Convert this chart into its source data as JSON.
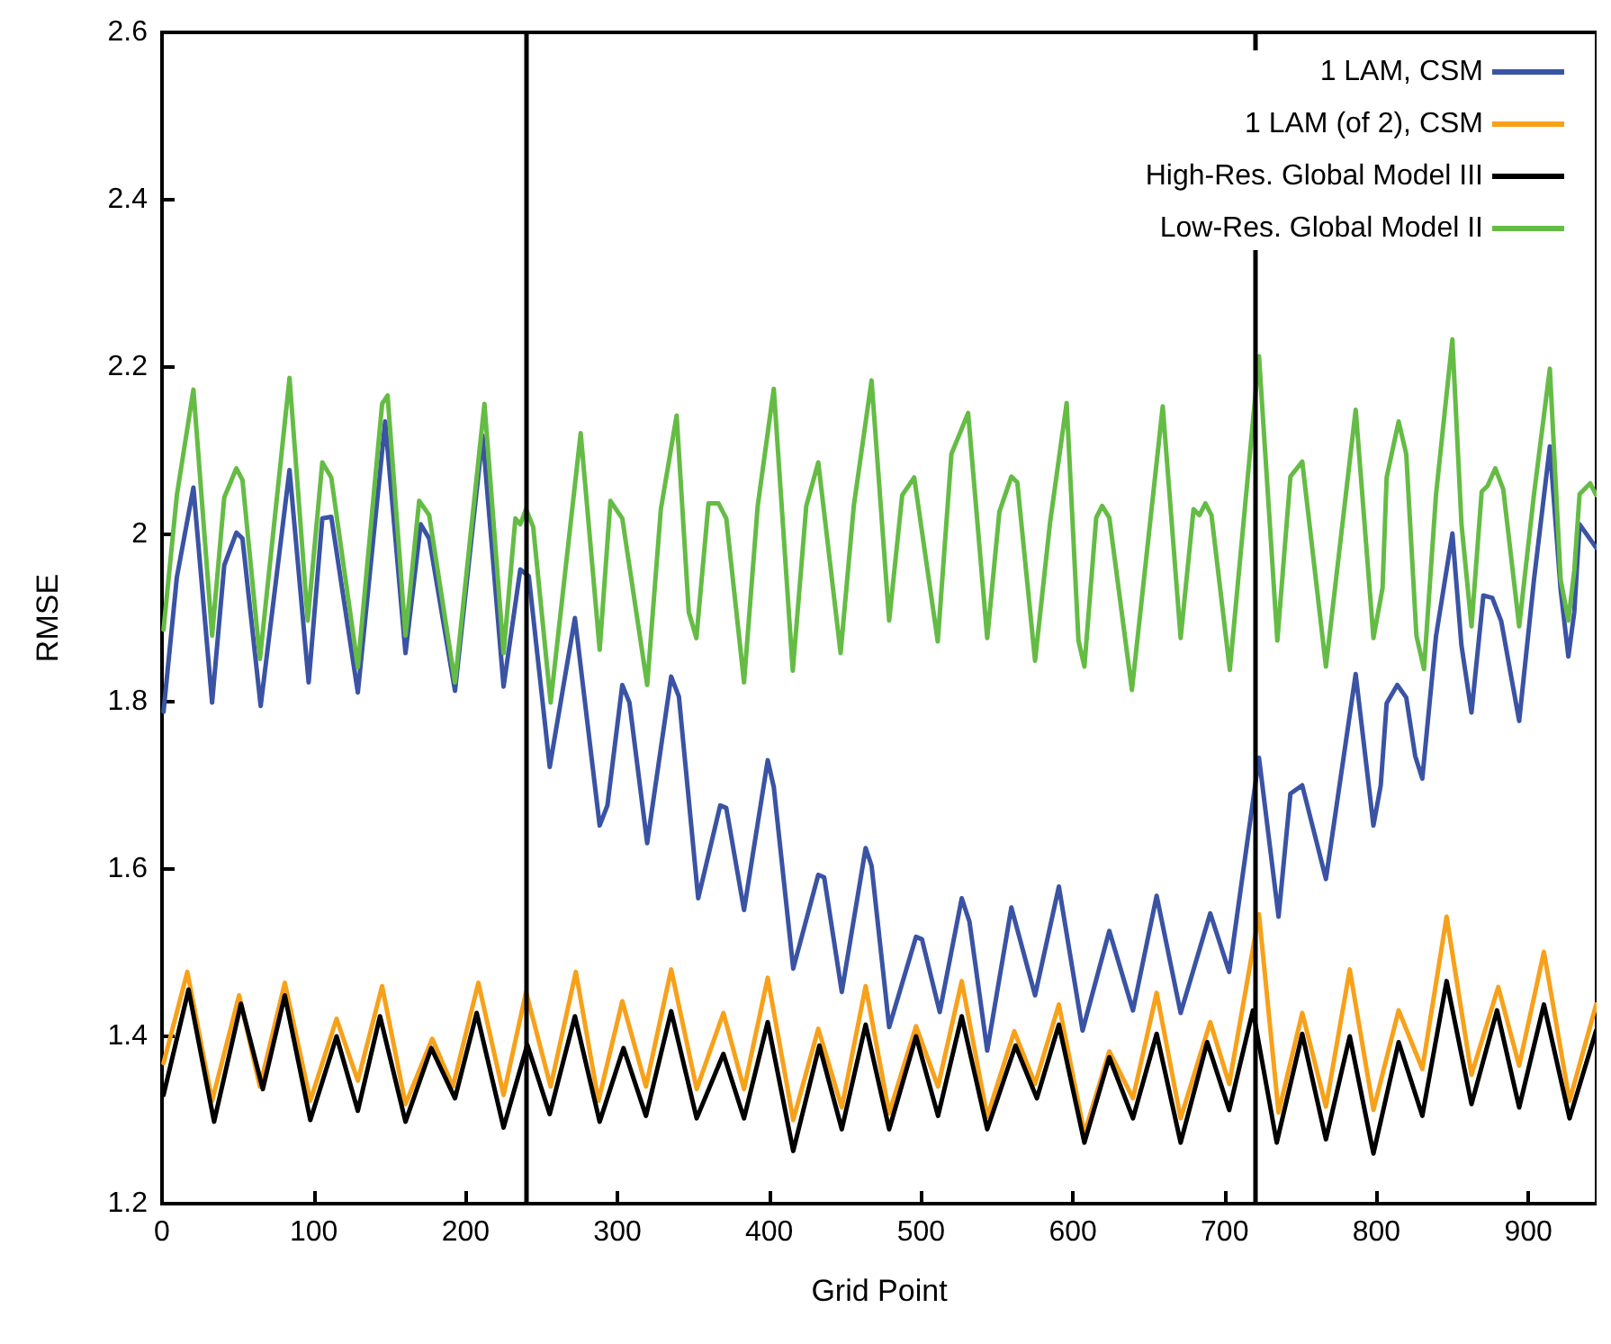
{
  "chart_data": {
    "type": "line",
    "xlabel": "Grid Point",
    "ylabel": "RMSE",
    "xlim": [
      0,
      945
    ],
    "xticks": [
      0,
      100,
      200,
      300,
      400,
      500,
      600,
      700,
      800,
      900
    ],
    "ylim": [
      1.2,
      2.6
    ],
    "yticks": [
      1.2,
      1.4,
      1.6,
      1.8,
      2,
      2.2,
      2.4,
      2.6
    ],
    "grid": false,
    "legend": "top right",
    "marker": "none",
    "line_style": "solid",
    "ref_lines": [
      {
        "axis": "x",
        "value": 240,
        "color": "#000000"
      },
      {
        "axis": "x",
        "value": 720,
        "color": "#000000"
      }
    ],
    "series": [
      {
        "name": "1 LAM, CSM",
        "color": "#3a53a4",
        "x": [
          1,
          9.8,
          20.7,
          33,
          41,
          49,
          53,
          65,
          84,
          96.6,
          105.6,
          111.5,
          129,
          147,
          160.4,
          170.4,
          176,
          193,
          211.2,
          225,
          236,
          241.6,
          255.4,
          272,
          288.3,
          293.4,
          303.2,
          307.9,
          319.6,
          335.4,
          340.5,
          353.2,
          367.7,
          371.7,
          383.4,
          399,
          403,
          415.8,
          432.3,
          436.2,
          447.8,
          463.5,
          467.4,
          479,
          496.7,
          500.6,
          512.3,
          526.8,
          531.9,
          543.6,
          559.5,
          575.1,
          590.8,
          606.4,
          624,
          639.6,
          655.2,
          671,
          690.5,
          703,
          722.6,
          735.5,
          743.3,
          751.1,
          766.7,
          786.3,
          798,
          802.8,
          806.7,
          813.7,
          819.6,
          825.5,
          830.2,
          839.2,
          850,
          856,
          862.6,
          870.4,
          876.3,
          882.2,
          894,
          903.7,
          914.2,
          921.3,
          926.4,
          930.3,
          933.8,
          944.7
        ],
        "values": [
          1.788,
          1.949,
          2.056,
          1.799,
          1.963,
          2.002,
          1.995,
          1.795,
          2.077,
          1.823,
          2.019,
          2.021,
          1.811,
          2.135,
          1.858,
          2.012,
          1.995,
          1.813,
          2.118,
          1.818,
          1.958,
          1.95,
          1.722,
          1.9,
          1.652,
          1.676,
          1.82,
          1.799,
          1.631,
          1.83,
          1.806,
          1.565,
          1.676,
          1.673,
          1.551,
          1.73,
          1.698,
          1.481,
          1.593,
          1.59,
          1.453,
          1.625,
          1.604,
          1.411,
          1.519,
          1.516,
          1.429,
          1.565,
          1.537,
          1.383,
          1.554,
          1.449,
          1.579,
          1.407,
          1.526,
          1.431,
          1.568,
          1.428,
          1.547,
          1.477,
          1.733,
          1.543,
          1.69,
          1.7,
          1.588,
          1.833,
          1.652,
          1.7,
          1.798,
          1.82,
          1.805,
          1.735,
          1.708,
          1.878,
          2.001,
          1.867,
          1.787,
          1.927,
          1.924,
          1.896,
          1.777,
          1.945,
          2.105,
          1.934,
          1.854,
          1.907,
          2.012,
          1.984
        ]
      },
      {
        "name": "1 LAM (of 2), CSM",
        "color": "#f7a11a",
        "x": [
          1,
          16.7,
          33,
          50.8,
          64.5,
          80.9,
          97.7,
          115,
          129,
          145,
          160.4,
          178,
          191.6,
          208.4,
          225,
          239.8,
          256,
          272.6,
          287.5,
          303.2,
          318.8,
          335.4,
          352.2,
          369.8,
          383.4,
          399,
          415.8,
          432.3,
          447.8,
          463.5,
          479,
          496.7,
          511.2,
          526.8,
          543.6,
          561.4,
          575.1,
          590.8,
          607.6,
          624,
          639.6,
          655.2,
          671,
          690.5,
          703,
          722.6,
          735.5,
          751.1,
          766.7,
          782.4,
          798,
          814.6,
          830.2,
          846.2,
          862.6,
          880.2,
          894,
          910.3,
          927.2,
          944.7
        ],
        "values": [
          1.368,
          1.477,
          1.323,
          1.449,
          1.34,
          1.464,
          1.323,
          1.421,
          1.347,
          1.46,
          1.319,
          1.397,
          1.34,
          1.464,
          1.33,
          1.453,
          1.34,
          1.477,
          1.323,
          1.442,
          1.34,
          1.48,
          1.337,
          1.428,
          1.337,
          1.47,
          1.3,
          1.409,
          1.315,
          1.46,
          1.308,
          1.412,
          1.34,
          1.466,
          1.304,
          1.406,
          1.343,
          1.438,
          1.284,
          1.382,
          1.326,
          1.452,
          1.302,
          1.417,
          1.343,
          1.546,
          1.309,
          1.428,
          1.316,
          1.48,
          1.312,
          1.431,
          1.361,
          1.543,
          1.354,
          1.459,
          1.365,
          1.501,
          1.323,
          1.438
        ]
      },
      {
        "name": "High-Res. Global Model III",
        "color": "#000000",
        "x": [
          1,
          17.5,
          34.3,
          52,
          66.4,
          80.9,
          97.7,
          115,
          129,
          143.6,
          160.4,
          177.4,
          193,
          207.3,
          225,
          240.6,
          255.4,
          272,
          288.3,
          304,
          318.8,
          335.4,
          352.2,
          369.8,
          383.4,
          399,
          415.8,
          433,
          447.8,
          463.5,
          479,
          496.7,
          511.2,
          526.8,
          543.6,
          562.2,
          576.3,
          590.8,
          607.6,
          624,
          639.6,
          655.2,
          671,
          688.5,
          703,
          718.6,
          734.3,
          751.1,
          766.7,
          782.4,
          798,
          814.6,
          830.2,
          846.2,
          862.6,
          879.4,
          894,
          910.3,
          927.2,
          944.7
        ],
        "values": [
          1.33,
          1.456,
          1.298,
          1.439,
          1.337,
          1.449,
          1.3,
          1.4,
          1.311,
          1.424,
          1.298,
          1.386,
          1.326,
          1.428,
          1.291,
          1.39,
          1.307,
          1.424,
          1.298,
          1.386,
          1.305,
          1.43,
          1.302,
          1.379,
          1.302,
          1.417,
          1.263,
          1.389,
          1.289,
          1.414,
          1.289,
          1.4,
          1.305,
          1.424,
          1.289,
          1.389,
          1.326,
          1.414,
          1.273,
          1.375,
          1.302,
          1.403,
          1.273,
          1.393,
          1.312,
          1.431,
          1.273,
          1.403,
          1.277,
          1.4,
          1.26,
          1.393,
          1.305,
          1.466,
          1.319,
          1.431,
          1.315,
          1.438,
          1.302,
          1.407
        ]
      },
      {
        "name": "Low-Res. Global Model II",
        "color": "#65bc45",
        "x": [
          1,
          9.8,
          20.7,
          33,
          41,
          49,
          53,
          64.5,
          84,
          96,
          105.6,
          111.5,
          129,
          145,
          148.6,
          160.4,
          169.4,
          176,
          193,
          212.4,
          225,
          232.8,
          236,
          239.8,
          244.5,
          256,
          275.8,
          288.3,
          295.4,
          303.2,
          319.6,
          328.6,
          339,
          347,
          352,
          360,
          366.6,
          371.7,
          383.4,
          392.4,
          403,
          415.5,
          424.4,
          432.3,
          447,
          455.7,
          467.4,
          479,
          487.6,
          495.5,
          511,
          520,
          531,
          543.6,
          551.6,
          559.5,
          563.4,
          575.1,
          584.9,
          595.9,
          603.7,
          607.6,
          615.4,
          619.3,
          624,
          638.9,
          659.2,
          671,
          679.5,
          683.4,
          687.3,
          691.3,
          703.4,
          722.6,
          734.7,
          743.3,
          751.1,
          766.7,
          786.3,
          798,
          804,
          806.7,
          814.6,
          819.6,
          826.3,
          831.3,
          839.2,
          850,
          856,
          862.6,
          869.3,
          873.2,
          878.3,
          883.5,
          894,
          903.7,
          914.2,
          921.3,
          926.4,
          930.3,
          933.8,
          940.8,
          944.7
        ],
        "values": [
          1.886,
          2.047,
          2.173,
          1.879,
          2.044,
          2.079,
          2.065,
          1.851,
          2.187,
          1.897,
          2.086,
          2.068,
          1.841,
          2.156,
          2.166,
          1.879,
          2.04,
          2.023,
          1.823,
          2.156,
          1.858,
          2.019,
          2.012,
          2.03,
          2.009,
          1.799,
          2.121,
          1.862,
          2.04,
          2.019,
          1.82,
          2.03,
          2.142,
          1.907,
          1.876,
          2.037,
          2.037,
          2.019,
          1.823,
          2.034,
          2.174,
          1.837,
          2.034,
          2.086,
          1.858,
          2.034,
          2.184,
          1.897,
          2.047,
          2.068,
          1.872,
          2.096,
          2.145,
          1.876,
          2.027,
          2.069,
          2.062,
          1.849,
          2.013,
          2.157,
          1.873,
          1.842,
          2.02,
          2.034,
          2.02,
          1.814,
          2.153,
          1.876,
          2.03,
          2.023,
          2.037,
          2.023,
          1.838,
          2.213,
          1.873,
          2.069,
          2.087,
          1.842,
          2.149,
          1.876,
          1.936,
          2.068,
          2.135,
          2.096,
          1.879,
          1.839,
          2.047,
          2.233,
          2.012,
          1.89,
          2.051,
          2.058,
          2.079,
          2.054,
          1.89,
          2.047,
          2.198,
          1.946,
          1.897,
          1.957,
          2.048,
          2.061,
          2.047
        ]
      }
    ]
  }
}
